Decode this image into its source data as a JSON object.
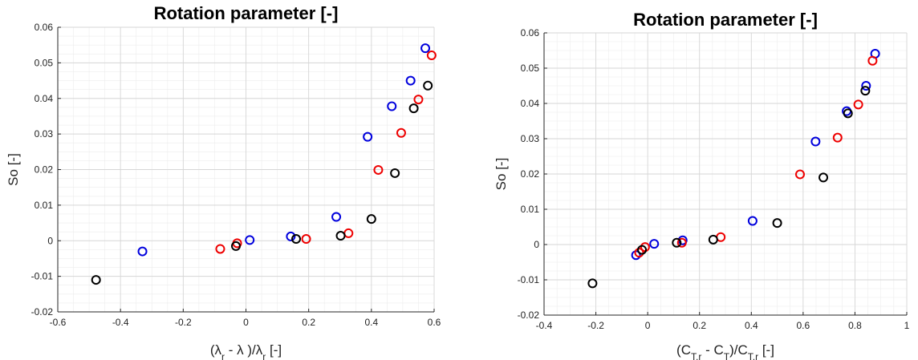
{
  "chart_data": [
    {
      "type": "scatter",
      "title": "Rotation parameter [-]",
      "xlabel": {
        "open": "(",
        "lambda_r": "λ",
        "sub_r": "r",
        "mid": " - λ )/",
        "lambda_r2": "λ",
        "sub_r2": "r",
        "unit": " [-]"
      },
      "ylabel": "So [-]",
      "xlim": [
        -0.6,
        0.6
      ],
      "ylim": [
        -0.02,
        0.06
      ],
      "xticks": [
        "-0.6",
        "-0.4",
        "-0.2",
        "0",
        "0.2",
        "0.4",
        "0.6"
      ],
      "yticks": [
        "-0.02",
        "-0.01",
        "0",
        "0.01",
        "0.02",
        "0.03",
        "0.04",
        "0.05",
        "0.06"
      ],
      "grid": true,
      "series": [
        {
          "color": "#0000dd",
          "points": [
            [
              -0.33,
              -0.003
            ],
            [
              0.012,
              0.0002
            ],
            [
              0.143,
              0.0012
            ],
            [
              0.288,
              0.0067
            ],
            [
              0.388,
              0.0292
            ],
            [
              0.465,
              0.0378
            ],
            [
              0.525,
              0.045
            ],
            [
              0.572,
              0.0541
            ]
          ]
        },
        {
          "color": "#ee0000",
          "points": [
            [
              -0.082,
              -0.0023
            ],
            [
              -0.028,
              -0.0007
            ],
            [
              0.192,
              0.0005
            ],
            [
              0.327,
              0.0021
            ],
            [
              0.422,
              0.0199
            ],
            [
              0.495,
              0.0303
            ],
            [
              0.55,
              0.0397
            ],
            [
              0.592,
              0.0521
            ]
          ]
        },
        {
          "color": "#000000",
          "points": [
            [
              -0.478,
              -0.011
            ],
            [
              -0.032,
              -0.0015
            ],
            [
              0.16,
              0.0005
            ],
            [
              0.302,
              0.0014
            ],
            [
              0.4,
              0.0061
            ],
            [
              0.475,
              0.019
            ],
            [
              0.535,
              0.0372
            ],
            [
              0.58,
              0.0436
            ]
          ]
        }
      ]
    },
    {
      "type": "scatter",
      "title": "Rotation parameter [-]",
      "xlabel": {
        "open": "(C",
        "sub1": "T,r",
        "mid": " - C",
        "sub2": "T",
        "mid2": ")/C",
        "sub3": "T,r",
        "unit": " [-]"
      },
      "ylabel": "So [-]",
      "xlim": [
        -0.4,
        1.0
      ],
      "ylim": [
        -0.02,
        0.06
      ],
      "xticks": [
        "-0.4",
        "-0.2",
        "0",
        "0.2",
        "0.4",
        "0.6",
        "0.8",
        "1"
      ],
      "yticks": [
        "-0.02",
        "-0.01",
        "0",
        "0.01",
        "0.02",
        "0.03",
        "0.04",
        "0.05",
        "0.06"
      ],
      "grid": true,
      "series": [
        {
          "color": "#0000dd",
          "points": [
            [
              -0.045,
              -0.003
            ],
            [
              0.025,
              0.0002
            ],
            [
              0.135,
              0.0012
            ],
            [
              0.405,
              0.0067
            ],
            [
              0.648,
              0.0292
            ],
            [
              0.768,
              0.0378
            ],
            [
              0.843,
              0.045
            ],
            [
              0.878,
              0.0541
            ]
          ]
        },
        {
          "color": "#ee0000",
          "points": [
            [
              -0.033,
              -0.0023
            ],
            [
              -0.01,
              -0.0007
            ],
            [
              0.132,
              0.0005
            ],
            [
              0.282,
              0.0021
            ],
            [
              0.588,
              0.0199
            ],
            [
              0.733,
              0.0303
            ],
            [
              0.813,
              0.0397
            ],
            [
              0.868,
              0.0521
            ]
          ]
        },
        {
          "color": "#000000",
          "points": [
            [
              -0.213,
              -0.011
            ],
            [
              -0.022,
              -0.0015
            ],
            [
              0.112,
              0.0005
            ],
            [
              0.253,
              0.0014
            ],
            [
              0.5,
              0.0061
            ],
            [
              0.678,
              0.019
            ],
            [
              0.773,
              0.0372
            ],
            [
              0.84,
              0.0436
            ]
          ]
        }
      ]
    }
  ]
}
